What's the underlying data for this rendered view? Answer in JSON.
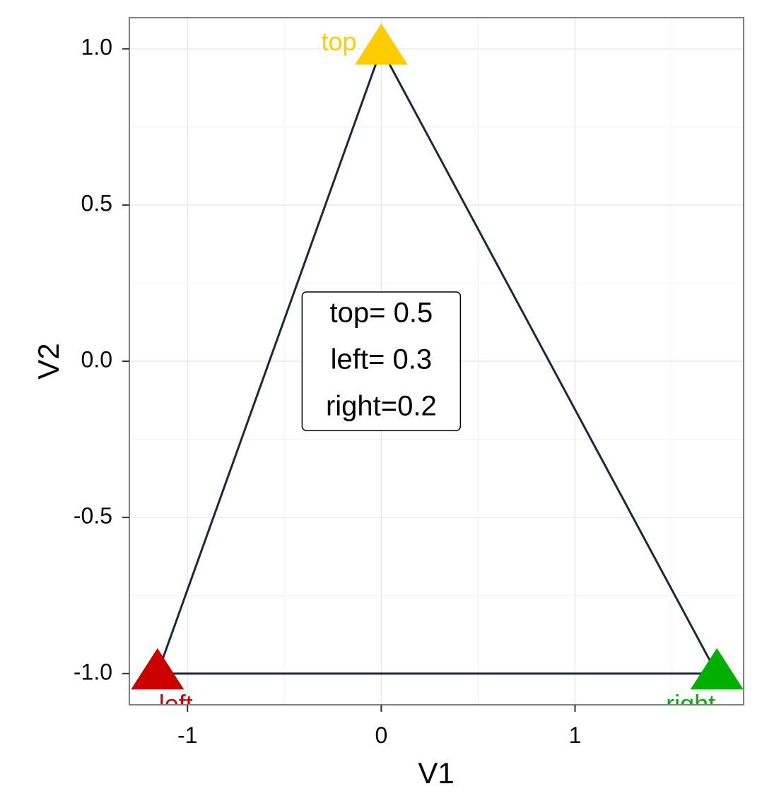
{
  "chart_data": {
    "type": "scatter",
    "title": "",
    "xlabel": "V1",
    "ylabel": "V2",
    "xlim": [
      -1.3,
      1.87
    ],
    "ylim": [
      -1.1,
      1.1
    ],
    "x_ticks": [
      -1,
      0,
      1
    ],
    "x_tick_labels": [
      "-1",
      "0",
      "1"
    ],
    "y_ticks": [
      1.0,
      0.5,
      0.0,
      -0.5,
      -1.0
    ],
    "y_tick_labels": [
      "1.0",
      "0.5",
      "0.0",
      "-0.5",
      "-1.0"
    ],
    "grid": true,
    "outline_color": "#1a2a3a",
    "points": [
      {
        "label": "top",
        "x": 0,
        "y": 1.0,
        "color": "#FFCC00",
        "shape": "triangle"
      },
      {
        "label": "left",
        "x": -1.155,
        "y": -1.0,
        "color": "#CC0000",
        "shape": "triangle"
      },
      {
        "label": "right",
        "x": 1.732,
        "y": -1.0,
        "color": "#00B000",
        "shape": "triangle"
      }
    ],
    "annotation_box": {
      "lines": [
        "top= 0.5",
        "left= 0.3",
        "right=0.2"
      ],
      "center_x": 0,
      "center_y": 0
    }
  }
}
